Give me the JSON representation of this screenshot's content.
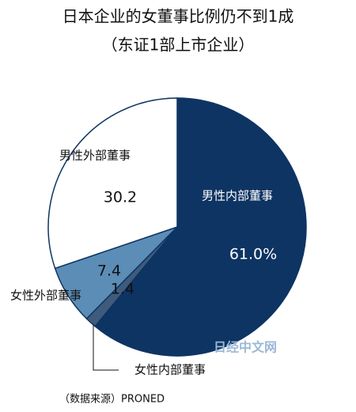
{
  "chart_data": {
    "type": "pie",
    "title": "日本企业的女董事比例仍不到1成",
    "subtitle": "（东证1部上市企业）",
    "categories": [
      "男性内部董事",
      "女性内部董事",
      "女性外部董事",
      "男性外部董事"
    ],
    "values": [
      61.0,
      1.4,
      7.4,
      30.2
    ],
    "value_labels": [
      "61.0%",
      "1.4",
      "7.4",
      "30.2"
    ],
    "colors": [
      "#0e3463",
      "#3f5b7c",
      "#5b8db6",
      "#ffffff"
    ],
    "source": "（数据来源）PRONED",
    "watermark": "日经中文网"
  }
}
